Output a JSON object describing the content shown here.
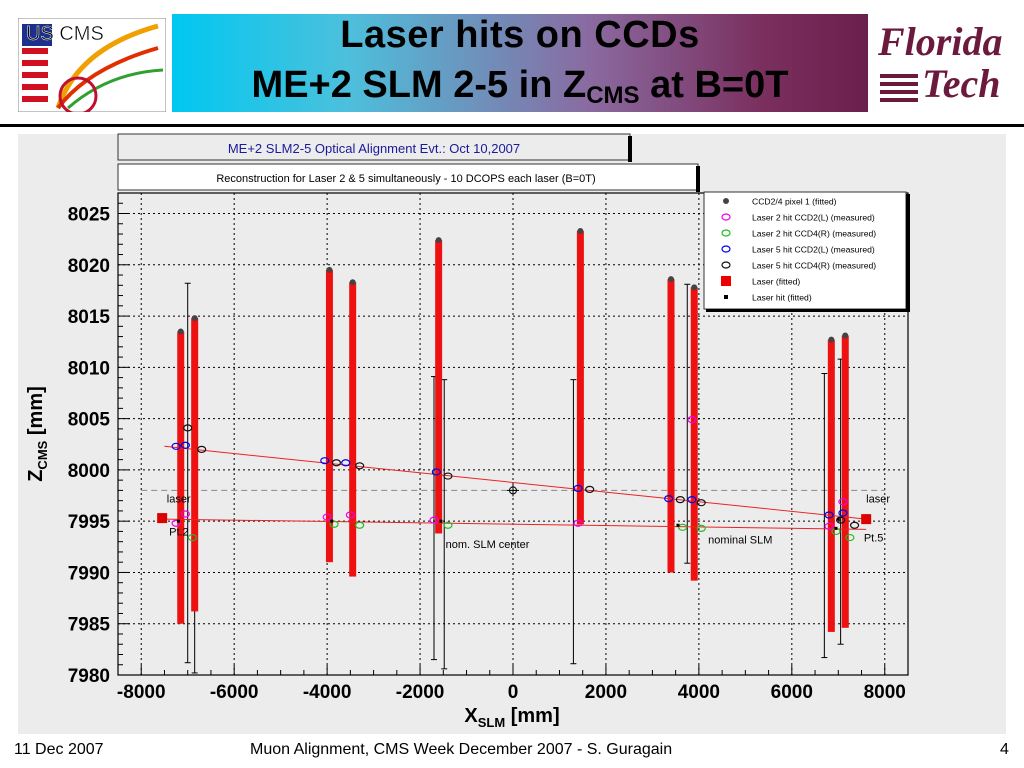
{
  "slide": {
    "title_line1": "Laser hits on CCDs",
    "title_line2_main": "ME+2 SLM 2-5 in Z",
    "title_line2_sub": "CMS",
    "title_line2_tail": " at B=0T",
    "logo_left_text": "US CMS",
    "logo_right_line1": "Florida",
    "logo_right_line2": "Tech",
    "footer_left": "11 Dec 2007",
    "footer_center": "Muon Alignment, CMS Week December 2007  - S. Guragain",
    "footer_right": "4"
  },
  "colors": {
    "laser_bar": "#ee1111",
    "fit_line": "#ee2222",
    "pt_marker": "#dd0000"
  },
  "chart_data": {
    "type": "scatter",
    "header_title": "ME+2 SLM2-5 Optical Alignment Evt.: Oct 10,2007",
    "subtitle": "Reconstruction for Laser 2 & 5 simultaneously - 10 DCOPS each laser (B=0T)",
    "xlabel_main": "X",
    "xlabel_sub": "SLM",
    "xlabel_unit": " [mm]",
    "ylabel_main": "Z",
    "ylabel_sub": "CMS",
    "ylabel_unit": " [mm]",
    "xlim": [
      -8500,
      8500
    ],
    "ylim": [
      7980,
      8027
    ],
    "grid": true,
    "legend_position": "top-right",
    "xticks": [
      -8000,
      -6000,
      -4000,
      -2000,
      0,
      2000,
      4000,
      6000,
      8000
    ],
    "yticks": [
      7980,
      7985,
      7990,
      7995,
      8000,
      8005,
      8010,
      8015,
      8020,
      8025
    ],
    "legend": [
      {
        "label": "CCD2/4 pixel 1 (fitted)",
        "marker": "filled-circle",
        "color": "#444444"
      },
      {
        "label": "Laser 2 hit CCD2(L) (measured)",
        "marker": "open-circle",
        "color": "#ee00ee"
      },
      {
        "label": "Laser 2 hit CCD4(R) (measured)",
        "marker": "open-circle",
        "color": "#22bb22"
      },
      {
        "label": "Laser 5 hit CCD2(L) (measured)",
        "marker": "open-circle",
        "color": "#0000ee"
      },
      {
        "label": "Laser 5 hit CCD4(R) (measured)",
        "marker": "open-circle",
        "color": "#111111"
      },
      {
        "label": "Laser (fitted)",
        "marker": "filled-square",
        "color": "#ee0000"
      },
      {
        "label": "Laser hit (fitted)",
        "marker": "small-square",
        "color": "#000000"
      }
    ],
    "annotations": [
      {
        "text": "laser",
        "x": -7450,
        "y": 7996.8
      },
      {
        "text": "Pt.2",
        "x": -7400,
        "y": 7993.6
      },
      {
        "text": "nom. SLM center",
        "x": -1450,
        "y": 7992.4
      },
      {
        "text": "nominal SLM",
        "x": 4200,
        "y": 7992.8
      },
      {
        "text": "laser",
        "x": 7600,
        "y": 7996.8
      },
      {
        "text": "Pt.5",
        "x": 7550,
        "y": 7993.0
      }
    ],
    "laser_bars": [
      {
        "x": -7150,
        "y_low": 7985,
        "y_high": 8013.5
      },
      {
        "x": -6850,
        "y_low": 7986.2,
        "y_high": 8014.8
      },
      {
        "x": -3950,
        "y_low": 7991,
        "y_high": 8019.5
      },
      {
        "x": -3450,
        "y_low": 7989.6,
        "y_high": 8018.3
      },
      {
        "x": -1600,
        "y_low": 7993.8,
        "y_high": 8022.4
      },
      {
        "x": 1450,
        "y_low": 7994.7,
        "y_high": 8023.3
      },
      {
        "x": 3400,
        "y_low": 7990,
        "y_high": 8018.6
      },
      {
        "x": 3900,
        "y_low": 7989.2,
        "y_high": 8017.8
      },
      {
        "x": 6850,
        "y_low": 7984.2,
        "y_high": 8012.7
      },
      {
        "x": 7150,
        "y_low": 7984.6,
        "y_high": 8013.1
      }
    ],
    "error_bars": [
      {
        "x": -7000,
        "y_low": 7981.2,
        "y_high": 8018.2
      },
      {
        "x": -6850,
        "y_low": 7980.2,
        "y_high": 8008.6
      },
      {
        "x": -1700,
        "y_low": 7981.5,
        "y_high": 8009.1
      },
      {
        "x": -1480,
        "y_low": 7980.6,
        "y_high": 8008.8
      },
      {
        "x": 1300,
        "y_low": 7981.1,
        "y_high": 8008.8
      },
      {
        "x": 3750,
        "y_low": 7990.9,
        "y_high": 8018.1
      },
      {
        "x": 6700,
        "y_low": 7981.7,
        "y_high": 8009.4
      },
      {
        "x": 7050,
        "y_low": 7983.0,
        "y_high": 8010.8
      }
    ],
    "fit_lines": [
      {
        "name": "Laser 5",
        "x": [
          -7500,
          7600
        ],
        "y": [
          8002.3,
          7995.2
        ]
      },
      {
        "name": "Laser 2",
        "x": [
          -7500,
          7600
        ],
        "y": [
          7995.2,
          7994.2
        ]
      }
    ],
    "reference_line": {
      "y": 7998.0,
      "x": [
        -8000,
        8000
      ]
    },
    "center_marker": {
      "x": 0,
      "y": 7998.0
    },
    "laser_fitted_points": [
      {
        "x": -7550,
        "y": 7995.3
      },
      {
        "x": 7600,
        "y": 7995.2
      }
    ],
    "points": {
      "laser5_ccd2": [
        {
          "x": -7250,
          "y": 8002.3
        },
        {
          "x": -7050,
          "y": 8002.4
        },
        {
          "x": -4050,
          "y": 8000.9
        },
        {
          "x": -3600,
          "y": 8000.7
        },
        {
          "x": -1650,
          "y": 7999.8
        },
        {
          "x": 1400,
          "y": 7998.2
        },
        {
          "x": 3350,
          "y": 7997.2
        },
        {
          "x": 3850,
          "y": 7997.1
        },
        {
          "x": 6800,
          "y": 7995.6
        },
        {
          "x": 7100,
          "y": 7995.8
        }
      ],
      "laser5_ccd4": [
        {
          "x": -7000,
          "y": 8004.1
        },
        {
          "x": -6700,
          "y": 8002.0
        },
        {
          "x": -3800,
          "y": 8000.7
        },
        {
          "x": -3300,
          "y": 8000.4
        },
        {
          "x": -1400,
          "y": 7999.4
        },
        {
          "x": 1650,
          "y": 7998.1
        },
        {
          "x": 3600,
          "y": 7997.1
        },
        {
          "x": 4050,
          "y": 7996.8
        },
        {
          "x": 7050,
          "y": 7995.1
        },
        {
          "x": 7350,
          "y": 7994.6
        }
      ],
      "laser2_ccd2": [
        {
          "x": -7250,
          "y": 7994.8
        },
        {
          "x": -7050,
          "y": 7995.7
        },
        {
          "x": -4000,
          "y": 7995.4
        },
        {
          "x": -3500,
          "y": 7995.6
        },
        {
          "x": -1700,
          "y": 7995.1
        },
        {
          "x": 1400,
          "y": 7994.8
        },
        {
          "x": 3850,
          "y": 8004.9
        },
        {
          "x": 6800,
          "y": 7994.5
        },
        {
          "x": 7100,
          "y": 7996.9
        }
      ],
      "laser2_ccd4": [
        {
          "x": -6900,
          "y": 7993.4
        },
        {
          "x": -3850,
          "y": 7994.7
        },
        {
          "x": -3300,
          "y": 7994.6
        },
        {
          "x": -1400,
          "y": 7994.6
        },
        {
          "x": 3650,
          "y": 7994.4
        },
        {
          "x": 4050,
          "y": 7994.3
        },
        {
          "x": 6950,
          "y": 7994.0
        },
        {
          "x": 7250,
          "y": 7993.4
        }
      ],
      "ccd_pixel1": [
        {
          "x": -7150,
          "y": 8013.5
        },
        {
          "x": -6850,
          "y": 8014.8
        },
        {
          "x": -3950,
          "y": 8019.5
        },
        {
          "x": -3450,
          "y": 8018.3
        },
        {
          "x": -1600,
          "y": 8022.4
        },
        {
          "x": 1450,
          "y": 8023.3
        },
        {
          "x": 3400,
          "y": 8018.6
        },
        {
          "x": 3900,
          "y": 8017.8
        },
        {
          "x": 6850,
          "y": 8012.7
        },
        {
          "x": 7150,
          "y": 8013.1
        }
      ],
      "laser_hit_fitted": [
        {
          "x": -7200,
          "y": 7995.0
        },
        {
          "x": -3900,
          "y": 7995.0
        },
        {
          "x": -1550,
          "y": 7995.0
        },
        {
          "x": 3550,
          "y": 7994.6
        },
        {
          "x": 6950,
          "y": 7994.3
        },
        {
          "x": 7000,
          "y": 7995.2
        }
      ]
    }
  }
}
